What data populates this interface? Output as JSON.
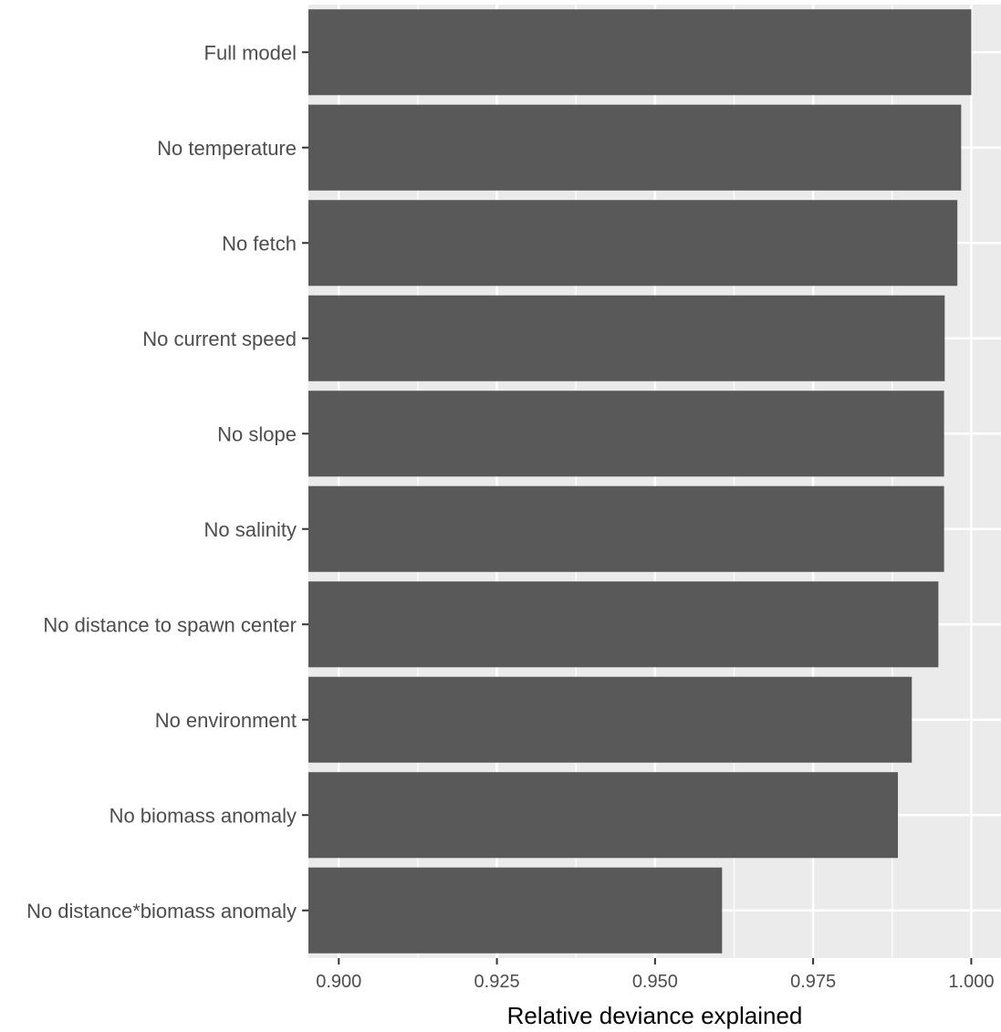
{
  "chart_data": {
    "type": "bar",
    "orientation": "horizontal",
    "categories": [
      "Full model",
      "No temperature",
      "No fetch",
      "No current speed",
      "No slope",
      "No salinity",
      "No distance to spawn center",
      "No environment",
      "No biomass anomaly",
      "No distance*biomass anomaly"
    ],
    "values": [
      1.0,
      0.9984,
      0.9978,
      0.9958,
      0.9957,
      0.9957,
      0.9948,
      0.9906,
      0.9884,
      0.9606
    ],
    "xlabel": "Relative deviance explained",
    "ylabel": "",
    "xlim": [
      0.8952,
      1.0047
    ],
    "xticks": [
      0.9,
      0.925,
      0.95,
      0.975,
      1.0
    ],
    "xtick_labels": [
      "0.900",
      "0.925",
      "0.950",
      "0.975",
      "1.000"
    ],
    "grid": true,
    "colors": {
      "bar": "#595959",
      "panel": "#ebebeb",
      "grid": "#ffffff"
    }
  }
}
